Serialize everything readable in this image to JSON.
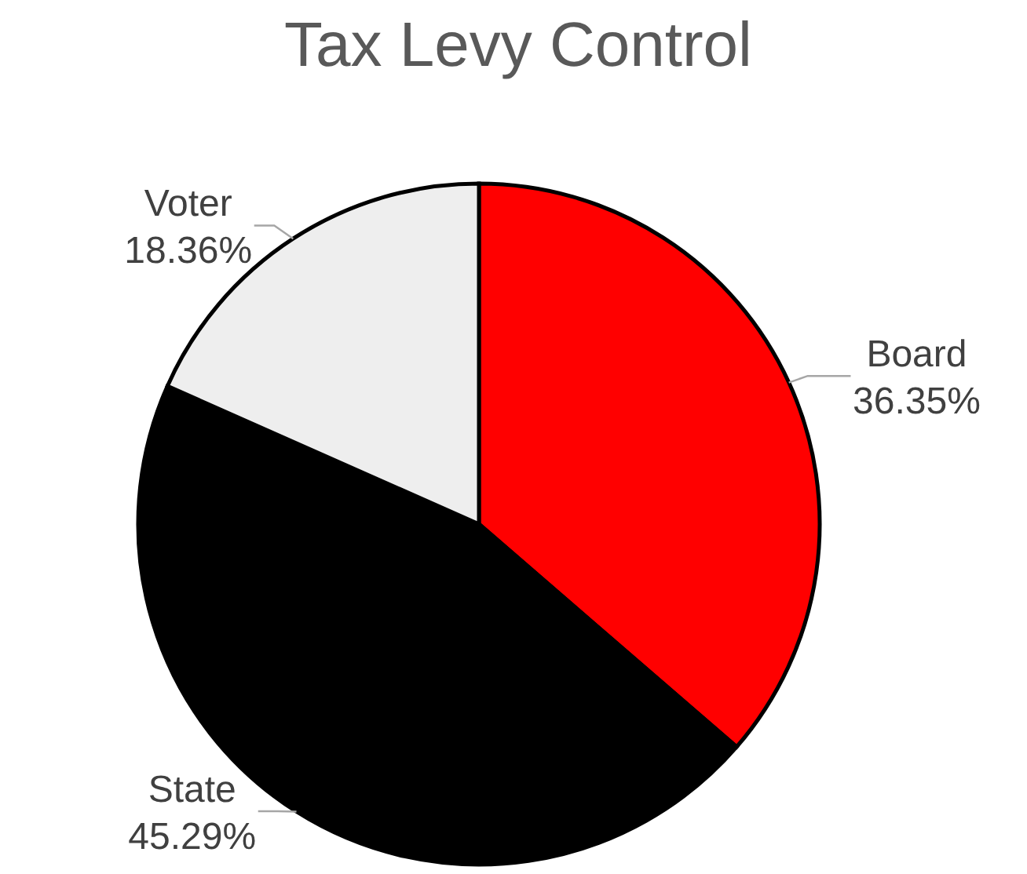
{
  "chart_data": {
    "type": "pie",
    "title": "Tax Levy Control",
    "categories": [
      "Board",
      "State",
      "Voter"
    ],
    "values": [
      36.35,
      45.29,
      18.36
    ],
    "value_labels": [
      "36.35%",
      "45.29%",
      "18.36%"
    ],
    "colors": [
      "#ff0000",
      "#000000",
      "#eeeeee"
    ]
  }
}
